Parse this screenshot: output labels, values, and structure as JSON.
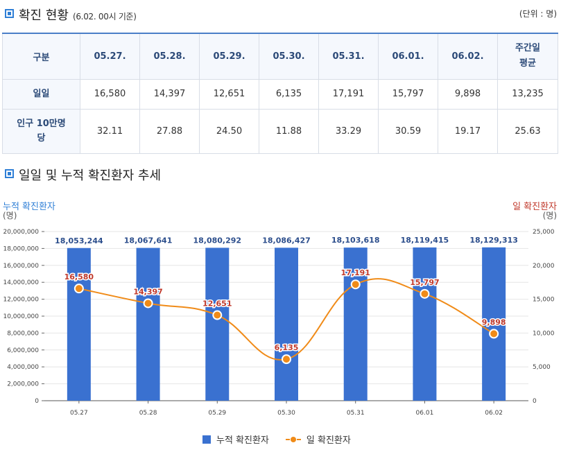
{
  "header": {
    "title": "확진 현황",
    "subtitle": "(6.02. 00시 기준)",
    "unit": "(단위 : 명)"
  },
  "table": {
    "columns": [
      "구분",
      "05.27.",
      "05.28.",
      "05.29.",
      "05.30.",
      "05.31.",
      "06.01.",
      "06.02.",
      "주간일 평균"
    ],
    "rows": [
      {
        "label": "일일",
        "cells": [
          "16,580",
          "14,397",
          "12,651",
          "6,135",
          "17,191",
          "15,797",
          "9,898",
          "13,235"
        ]
      },
      {
        "label": "인구 10만명당",
        "cells": [
          "32.11",
          "27.88",
          "24.50",
          "11.88",
          "33.29",
          "30.59",
          "19.17",
          "25.63"
        ]
      }
    ]
  },
  "section2": {
    "title": "일일 및 누적 확진환자 추세"
  },
  "chart": {
    "left_axis_title": "누적 확진환자",
    "left_axis_unit": "(명)",
    "right_axis_title": "일 확진환자",
    "right_axis_unit": "(명)",
    "legend": {
      "bar": "누적 확진환자",
      "line": "일 확진환자"
    }
  },
  "colors": {
    "bar": "#3a71d0",
    "line": "#f08b18",
    "accent": "#2f7fd6",
    "left_axis": "#2f7fd6",
    "right_axis": "#c0392b"
  },
  "chart_data": {
    "type": "bar",
    "categories": [
      "05.27",
      "05.28",
      "05.29",
      "05.30",
      "05.31",
      "06.01",
      "06.02"
    ],
    "series": [
      {
        "name": "누적 확진환자",
        "type": "bar",
        "axis": "left",
        "values": [
          18053244,
          18067641,
          18080292,
          18086427,
          18103618,
          18119415,
          18129313
        ],
        "labels": [
          "18,053,244",
          "18,067,641",
          "18,080,292",
          "18,086,427",
          "18,103,618",
          "18,119,415",
          "18,129,313"
        ]
      },
      {
        "name": "일 확진환자",
        "type": "line",
        "axis": "right",
        "values": [
          16580,
          14397,
          12651,
          6135,
          17191,
          15797,
          9898
        ],
        "labels": [
          "16,580",
          "14,397",
          "12,651",
          "6,135",
          "17,191",
          "15,797",
          "9,898"
        ]
      }
    ],
    "left_axis": {
      "range": [
        0,
        20000000
      ],
      "ticks": [
        "0",
        "2,000,000",
        "4,000,000",
        "6,000,000",
        "8,000,000",
        "10,000,000",
        "12,000,000",
        "14,000,000",
        "16,000,000",
        "18,000,000",
        "20,000,000"
      ]
    },
    "right_axis": {
      "range": [
        0,
        25000
      ],
      "ticks": [
        "0",
        "5,000",
        "10,000",
        "15,000",
        "20,000",
        "25,000"
      ]
    },
    "grid": true,
    "legend_position": "bottom-center"
  }
}
